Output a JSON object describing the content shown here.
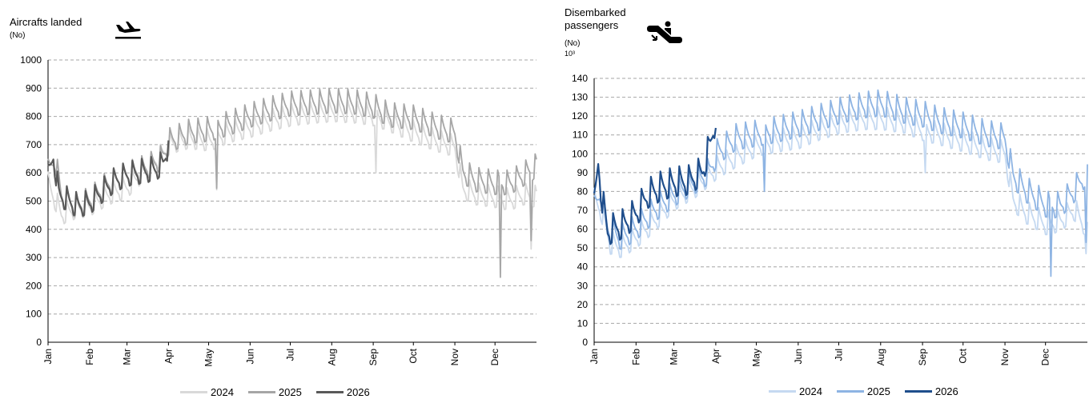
{
  "charts": [
    {
      "title_lines": [
        "Aircrafts landed"
      ],
      "unit": "(No)",
      "exponent": "",
      "icon": "airplane-landing-icon",
      "ylim": [
        0,
        1000
      ],
      "ytick_step": 100,
      "months": [
        "Jan",
        "Feb",
        "Mar",
        "Apr",
        "May",
        "Jun",
        "Jul",
        "Aug",
        "Sep",
        "Oct",
        "Nov",
        "Dec"
      ],
      "legend": [
        "2024",
        "2025",
        "2026"
      ],
      "colors": [
        "#d9d9d9",
        "#a6a6a6",
        "#595959"
      ]
    },
    {
      "title_lines": [
        "Disembarked",
        "passengers"
      ],
      "unit": "(No)",
      "exponent": "10³",
      "icon": "escalator-passenger-icon",
      "ylim": [
        0,
        140
      ],
      "ytick_step": 10,
      "months": [
        "Jan",
        "Feb",
        "Mar",
        "Apr",
        "May",
        "Jun",
        "Jul",
        "Aug",
        "Sep",
        "Oct",
        "Nov",
        "Dec"
      ],
      "legend": [
        "2024",
        "2025",
        "2026"
      ],
      "colors": [
        "#c5d9f1",
        "#8eb4e3",
        "#1f4e8c"
      ]
    }
  ],
  "chart_data": [
    {
      "type": "line",
      "title": "Aircrafts landed",
      "ylabel": "(No)",
      "x": [
        "Jan",
        "Feb",
        "Mar",
        "Apr",
        "May",
        "Jun",
        "Jul",
        "Aug",
        "Sep",
        "Oct",
        "Nov",
        "Dec"
      ],
      "ylim": [
        0,
        1000
      ],
      "grid": true,
      "legend_position": "bottom",
      "series": [
        {
          "name": "2024",
          "color": "#d9d9d9",
          "anchors": [
            [
              0,
              560
            ],
            [
              10,
              450
            ],
            [
              20,
              470
            ],
            [
              31,
              480
            ],
            [
              45,
              520
            ],
            [
              59,
              545
            ],
            [
              75,
              620
            ],
            [
              85,
              660
            ],
            [
              91,
              700
            ],
            [
              105,
              720
            ],
            [
              121,
              710
            ],
            [
              135,
              740
            ],
            [
              152,
              760
            ],
            [
              165,
              780
            ],
            [
              182,
              800
            ],
            [
              200,
              810
            ],
            [
              213,
              815
            ],
            [
              230,
              810
            ],
            [
              244,
              800
            ],
            [
              255,
              780
            ],
            [
              274,
              740
            ],
            [
              290,
              710
            ],
            [
              304,
              690
            ],
            [
              310,
              540
            ],
            [
              320,
              520
            ],
            [
              335,
              510
            ],
            [
              345,
              500
            ],
            [
              355,
              520
            ],
            [
              365,
              510
            ]
          ],
          "amplitude": 45,
          "min_day": 0,
          "max_day": 365,
          "spikes": [
            [
              126,
              540
            ],
            [
              245,
              600
            ],
            [
              361,
              330
            ]
          ]
        },
        {
          "name": "2025",
          "color": "#a6a6a6",
          "anchors": [
            [
              0,
              600
            ],
            [
              5,
              650
            ],
            [
              10,
              520
            ],
            [
              20,
              480
            ],
            [
              31,
              500
            ],
            [
              45,
              560
            ],
            [
              59,
              590
            ],
            [
              75,
              620
            ],
            [
              85,
              650
            ],
            [
              91,
              710
            ],
            [
              105,
              740
            ],
            [
              121,
              750
            ],
            [
              135,
              770
            ],
            [
              152,
              800
            ],
            [
              165,
              820
            ],
            [
              182,
              840
            ],
            [
              200,
              845
            ],
            [
              213,
              850
            ],
            [
              230,
              845
            ],
            [
              244,
              830
            ],
            [
              255,
              800
            ],
            [
              274,
              790
            ],
            [
              290,
              760
            ],
            [
              304,
              740
            ],
            [
              310,
              600
            ],
            [
              320,
              570
            ],
            [
              335,
              560
            ],
            [
              345,
              560
            ],
            [
              355,
              590
            ],
            [
              365,
              620
            ]
          ],
          "amplitude": 50,
          "min_day": 0,
          "max_day": 365,
          "spikes": [
            [
              126,
              545
            ],
            [
              338,
              230
            ],
            [
              361,
              360
            ]
          ]
        },
        {
          "name": "2026",
          "color": "#595959",
          "anchors": [
            [
              0,
              580
            ],
            [
              4,
              660
            ],
            [
              8,
              520
            ],
            [
              15,
              500
            ],
            [
              22,
              480
            ],
            [
              31,
              490
            ],
            [
              40,
              530
            ],
            [
              50,
              570
            ],
            [
              59,
              590
            ],
            [
              70,
              600
            ],
            [
              80,
              610
            ],
            [
              86,
              630
            ],
            [
              89,
              680
            ],
            [
              90,
              750
            ]
          ],
          "amplitude": 50,
          "min_day": 0,
          "max_day": 90,
          "spikes": []
        }
      ]
    },
    {
      "type": "line",
      "title": "Disembarked passengers",
      "ylabel": "(No) 10³",
      "x": [
        "Jan",
        "Feb",
        "Mar",
        "Apr",
        "May",
        "Jun",
        "Jul",
        "Aug",
        "Sep",
        "Oct",
        "Nov",
        "Dec"
      ],
      "ylim": [
        0,
        140
      ],
      "grid": true,
      "legend_position": "bottom",
      "series": [
        {
          "name": "2024",
          "color": "#c5d9f1",
          "anchors": [
            [
              0,
              75
            ],
            [
              5,
              70
            ],
            [
              12,
              52
            ],
            [
              20,
              50
            ],
            [
              31,
              55
            ],
            [
              45,
              64
            ],
            [
              59,
              75
            ],
            [
              75,
              82
            ],
            [
              85,
              88
            ],
            [
              91,
              92
            ],
            [
              105,
              98
            ],
            [
              121,
              104
            ],
            [
              135,
              106
            ],
            [
              152,
              108
            ],
            [
              165,
              112
            ],
            [
              182,
              116
            ],
            [
              200,
              118
            ],
            [
              213,
              118
            ],
            [
              230,
              116
            ],
            [
              244,
              112
            ],
            [
              255,
              110
            ],
            [
              274,
              106
            ],
            [
              290,
              102
            ],
            [
              304,
              100
            ],
            [
              310,
              75
            ],
            [
              320,
              68
            ],
            [
              335,
              62
            ],
            [
              345,
              64
            ],
            [
              355,
              70
            ],
            [
              365,
              60
            ]
          ],
          "amplitude": 7,
          "min_day": 0,
          "max_day": 365,
          "spikes": [
            [
              126,
              82
            ],
            [
              245,
              90
            ],
            [
              364,
              47
            ]
          ]
        },
        {
          "name": "2025",
          "color": "#8eb4e3",
          "anchors": [
            [
              0,
              70
            ],
            [
              5,
              80
            ],
            [
              10,
              60
            ],
            [
              20,
              55
            ],
            [
              31,
              60
            ],
            [
              45,
              70
            ],
            [
              59,
              78
            ],
            [
              75,
              85
            ],
            [
              85,
              90
            ],
            [
              91,
              100
            ],
            [
              105,
              108
            ],
            [
              121,
              110
            ],
            [
              135,
              112
            ],
            [
              152,
              115
            ],
            [
              165,
              118
            ],
            [
              182,
              122
            ],
            [
              200,
              125
            ],
            [
              213,
              126
            ],
            [
              230,
              122
            ],
            [
              244,
              120
            ],
            [
              255,
              117
            ],
            [
              274,
              114
            ],
            [
              290,
              110
            ],
            [
              304,
              108
            ],
            [
              310,
              88
            ],
            [
              320,
              80
            ],
            [
              335,
              72
            ],
            [
              345,
              72
            ],
            [
              355,
              80
            ],
            [
              365,
              90
            ]
          ],
          "amplitude": 8,
          "min_day": 0,
          "max_day": 365,
          "spikes": [
            [
              126,
              80
            ],
            [
              338,
              35
            ],
            [
              364,
              53
            ]
          ]
        },
        {
          "name": "2026",
          "color": "#1f4e8c",
          "anchors": [
            [
              0,
              70
            ],
            [
              3,
              95
            ],
            [
              6,
              75
            ],
            [
              10,
              58
            ],
            [
              15,
              60
            ],
            [
              22,
              62
            ],
            [
              31,
              68
            ],
            [
              40,
              78
            ],
            [
              50,
              82
            ],
            [
              59,
              84
            ],
            [
              70,
              85
            ],
            [
              80,
              90
            ],
            [
              86,
              105
            ],
            [
              89,
              115
            ],
            [
              90,
              120
            ]
          ],
          "amplitude": 9,
          "min_day": 0,
          "max_day": 90,
          "spikes": []
        }
      ]
    }
  ]
}
